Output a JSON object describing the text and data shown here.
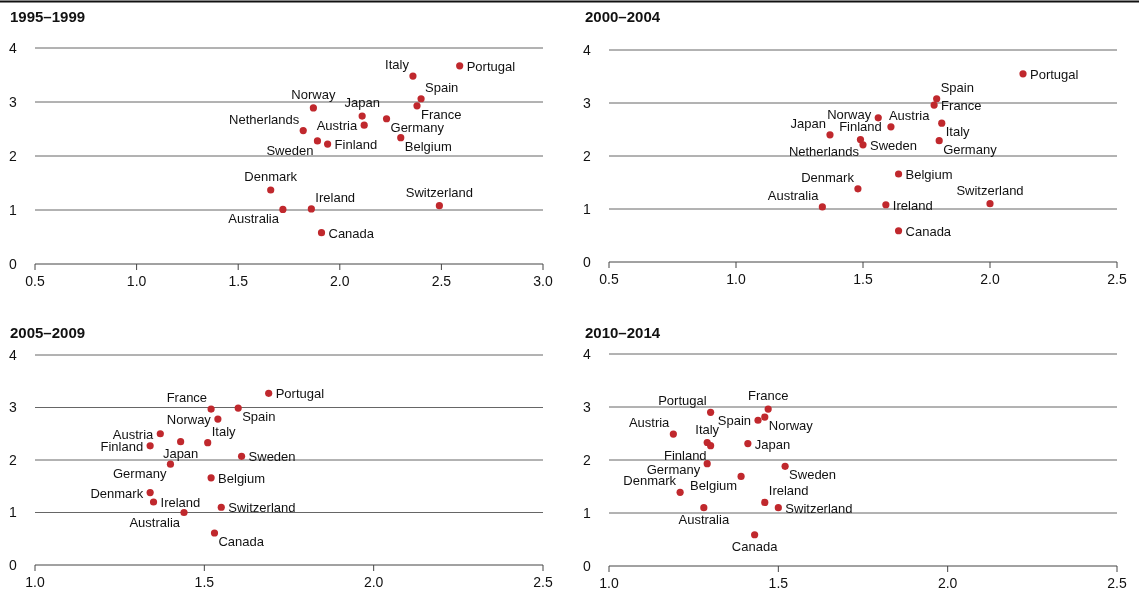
{
  "chart_data": [
    {
      "type": "scatter",
      "title": "1995–1999",
      "xlim": [
        0.5,
        3.0
      ],
      "xticks": [
        {
          "value": 0.5,
          "label": "0.5"
        },
        {
          "value": 1,
          "label": "1.0"
        },
        {
          "value": 1.5,
          "label": "1.5"
        },
        {
          "value": 2,
          "label": "2.0"
        },
        {
          "value": 2.5,
          "label": "2.5"
        },
        {
          "value": 3,
          "label": "3.0"
        }
      ],
      "ylim": [
        0,
        4
      ],
      "yticks": [
        0,
        1,
        2,
        3,
        4
      ],
      "grid": "y",
      "marker": "circle",
      "series": [
        {
          "color": "#c0282d",
          "x": [
            2.59,
            2.36,
            2.4,
            2.38,
            1.87,
            2.11,
            2.12,
            2.23,
            1.82,
            1.89,
            1.94,
            2.3,
            1.66,
            1.86,
            1.72,
            2.49,
            1.91
          ],
          "values": [
            3.67,
            3.48,
            3.06,
            2.93,
            2.89,
            2.74,
            2.57,
            2.69,
            2.47,
            2.28,
            2.22,
            2.34,
            1.37,
            1.02,
            1.01,
            1.08,
            0.58
          ]
        }
      ],
      "annotations": [
        {
          "text": "Portugal",
          "x": 2.59,
          "y": 3.67
        },
        {
          "text": "Italy",
          "x": 2.36,
          "y": 3.48
        },
        {
          "text": "Spain",
          "x": 2.4,
          "y": 3.06
        },
        {
          "text": "France",
          "x": 2.38,
          "y": 2.93
        },
        {
          "text": "Norway",
          "x": 1.87,
          "y": 2.89
        },
        {
          "text": "Japan",
          "x": 2.11,
          "y": 2.74
        },
        {
          "text": "Austria",
          "x": 2.12,
          "y": 2.57
        },
        {
          "text": "Germany",
          "x": 2.23,
          "y": 2.69
        },
        {
          "text": "Netherlands",
          "x": 1.82,
          "y": 2.47
        },
        {
          "text": "Sweden",
          "x": 1.89,
          "y": 2.28
        },
        {
          "text": "Finland",
          "x": 1.94,
          "y": 2.22
        },
        {
          "text": "Belgium",
          "x": 2.3,
          "y": 2.34
        },
        {
          "text": "Denmark",
          "x": 1.66,
          "y": 1.37
        },
        {
          "text": "Ireland",
          "x": 1.86,
          "y": 1.02
        },
        {
          "text": "Australia",
          "x": 1.72,
          "y": 1.01
        },
        {
          "text": "Switzerland",
          "x": 2.49,
          "y": 1.08
        },
        {
          "text": "Canada",
          "x": 1.91,
          "y": 0.58
        }
      ]
    },
    {
      "type": "scatter",
      "title": "2000–2004",
      "xlim": [
        0.5,
        2.5
      ],
      "xticks": [
        {
          "value": 0.5,
          "label": "0.5"
        },
        {
          "value": 1,
          "label": "1.0"
        },
        {
          "value": 1.5,
          "label": "1.5"
        },
        {
          "value": 2,
          "label": "2.0"
        },
        {
          "value": 2.5,
          "label": "2.5"
        }
      ],
      "ylim": [
        0,
        4
      ],
      "yticks": [
        0,
        1,
        2,
        3,
        4
      ],
      "grid": "y",
      "marker": "circle",
      "series": [
        {
          "color": "#c0282d",
          "x": [
            2.13,
            1.79,
            1.78,
            1.56,
            1.61,
            1.81,
            1.37,
            1.49,
            null,
            1.5,
            1.8,
            1.64,
            1.48,
            1.34,
            1.59,
            2.0,
            1.64
          ],
          "values": [
            3.55,
            3.08,
            2.96,
            2.72,
            2.55,
            2.62,
            2.4,
            2.31,
            null,
            2.21,
            2.29,
            1.66,
            1.38,
            1.04,
            1.08,
            1.1,
            0.59
          ]
        }
      ],
      "annotations": [
        {
          "text": "Portugal",
          "x": 2.13,
          "y": 3.55
        },
        {
          "text": "Spain",
          "x": 1.79,
          "y": 3.08
        },
        {
          "text": "France",
          "x": 1.78,
          "y": 2.96
        },
        {
          "text": "Norway",
          "x": 1.56,
          "y": 2.72
        },
        {
          "text": "Austria",
          "x": 1.61,
          "y": 2.55
        },
        {
          "text": "Italy",
          "x": 1.81,
          "y": 2.62
        },
        {
          "text": "Japan",
          "x": 1.37,
          "y": 2.4
        },
        {
          "text": "Finland",
          "x": 1.49,
          "y": 2.31
        },
        {
          "text": "Netherlands",
          "x": 1.5,
          "y": 2.27
        },
        {
          "text": "Sweden",
          "x": 1.5,
          "y": 2.21
        },
        {
          "text": "Germany",
          "x": 1.8,
          "y": 2.29
        },
        {
          "text": "Belgium",
          "x": 1.64,
          "y": 1.66
        },
        {
          "text": "Denmark",
          "x": 1.48,
          "y": 1.38
        },
        {
          "text": "Australia",
          "x": 1.34,
          "y": 1.04
        },
        {
          "text": "Ireland",
          "x": 1.59,
          "y": 1.08
        },
        {
          "text": "Switzerland",
          "x": 2.0,
          "y": 1.1
        },
        {
          "text": "Canada",
          "x": 1.64,
          "y": 0.59
        }
      ]
    },
    {
      "type": "scatter",
      "title": "2005–2009",
      "xlim": [
        1.0,
        2.5
      ],
      "xticks": [
        {
          "value": 1,
          "label": "1.0"
        },
        {
          "value": 1.5,
          "label": "1.5"
        },
        {
          "value": 2,
          "label": "2.0"
        },
        {
          "value": 2.5,
          "label": "2.5"
        }
      ],
      "ylim": [
        0,
        4
      ],
      "yticks": [
        0,
        1,
        2,
        3,
        4
      ],
      "grid": "y",
      "marker": "circle",
      "series": [
        {
          "color": "#c0282d",
          "x": [
            1.69,
            1.52,
            1.6,
            1.54,
            1.37,
            1.43,
            1.51,
            1.34,
            1.61,
            1.4,
            1.52,
            1.34,
            1.35,
            1.55,
            1.44,
            1.53
          ],
          "values": [
            3.27,
            2.97,
            2.99,
            2.78,
            2.5,
            2.35,
            2.33,
            2.27,
            2.07,
            1.92,
            1.66,
            1.38,
            1.2,
            1.1,
            1.0,
            0.61
          ]
        }
      ],
      "annotations": [
        {
          "text": "Portugal",
          "x": 1.69,
          "y": 3.27
        },
        {
          "text": "France",
          "x": 1.52,
          "y": 2.97
        },
        {
          "text": "Spain",
          "x": 1.6,
          "y": 2.99
        },
        {
          "text": "Norway",
          "x": 1.54,
          "y": 2.78
        },
        {
          "text": "Austria",
          "x": 1.37,
          "y": 2.5
        },
        {
          "text": "Japan",
          "x": 1.43,
          "y": 2.35
        },
        {
          "text": "Italy",
          "x": 1.51,
          "y": 2.33
        },
        {
          "text": "Finland",
          "x": 1.34,
          "y": 2.27
        },
        {
          "text": "Sweden",
          "x": 1.61,
          "y": 2.07
        },
        {
          "text": "Germany",
          "x": 1.4,
          "y": 1.92
        },
        {
          "text": "Belgium",
          "x": 1.52,
          "y": 1.66
        },
        {
          "text": "Denmark",
          "x": 1.34,
          "y": 1.38
        },
        {
          "text": "Ireland",
          "x": 1.35,
          "y": 1.2
        },
        {
          "text": "Switzerland",
          "x": 1.55,
          "y": 1.1
        },
        {
          "text": "Australia",
          "x": 1.44,
          "y": 1.0
        },
        {
          "text": "Canada",
          "x": 1.53,
          "y": 0.61
        }
      ]
    },
    {
      "type": "scatter",
      "title": "2010–2014",
      "xlim": [
        1.0,
        2.5
      ],
      "xticks": [
        {
          "value": 1,
          "label": "1.0"
        },
        {
          "value": 1.5,
          "label": "1.5"
        },
        {
          "value": 2,
          "label": "2.0"
        },
        {
          "value": 2.5,
          "label": "2.5"
        }
      ],
      "ylim": [
        0,
        4
      ],
      "yticks": [
        0,
        1,
        2,
        3,
        4
      ],
      "grid": "y",
      "marker": "circle",
      "series": [
        {
          "color": "#c0282d",
          "x": [
            1.3,
            1.47,
            1.44,
            1.46,
            1.19,
            1.29,
            1.3,
            1.41,
            1.29,
            1.52,
            1.39,
            1.21,
            1.46,
            1.5,
            1.28,
            1.43
          ],
          "values": [
            2.9,
            2.96,
            2.75,
            2.81,
            2.49,
            2.33,
            2.27,
            2.31,
            1.93,
            1.88,
            1.69,
            1.39,
            1.2,
            1.1,
            1.1,
            0.59
          ]
        }
      ],
      "annotations": [
        {
          "text": "Portugal",
          "x": 1.3,
          "y": 2.9
        },
        {
          "text": "France",
          "x": 1.47,
          "y": 2.96
        },
        {
          "text": "Spain",
          "x": 1.44,
          "y": 2.75
        },
        {
          "text": "Norway",
          "x": 1.46,
          "y": 2.81
        },
        {
          "text": "Austria",
          "x": 1.19,
          "y": 2.49
        },
        {
          "text": "Italy",
          "x": 1.29,
          "y": 2.33
        },
        {
          "text": "Finland",
          "x": 1.3,
          "y": 2.27
        },
        {
          "text": "Japan",
          "x": 1.41,
          "y": 2.31
        },
        {
          "text": "Germany",
          "x": 1.29,
          "y": 1.93
        },
        {
          "text": "Sweden",
          "x": 1.52,
          "y": 1.88
        },
        {
          "text": "Belgium",
          "x": 1.39,
          "y": 1.69
        },
        {
          "text": "Denmark",
          "x": 1.21,
          "y": 1.39
        },
        {
          "text": "Ireland",
          "x": 1.46,
          "y": 1.2
        },
        {
          "text": "Switzerland",
          "x": 1.5,
          "y": 1.1
        },
        {
          "text": "Australia",
          "x": 1.28,
          "y": 1.1
        },
        {
          "text": "Canada",
          "x": 1.43,
          "y": 0.59
        }
      ]
    }
  ]
}
